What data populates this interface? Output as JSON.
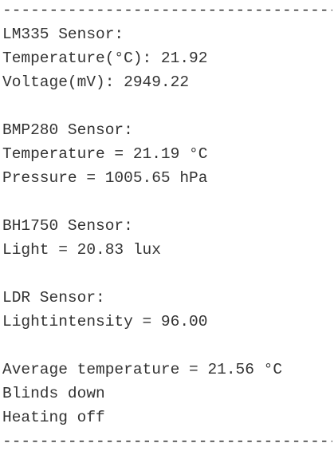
{
  "separator_top": "----------------------------------------",
  "lm335": {
    "heading": "LM335 Sensor:",
    "temperature": "Temperature(°C): 21.92",
    "voltage": "Voltage(mV): 2949.22"
  },
  "bmp280": {
    "heading": "BMP280 Sensor:",
    "temperature": "Temperature = 21.19 °C",
    "pressure": "Pressure = 1005.65 hPa"
  },
  "bh1750": {
    "heading": "BH1750 Sensor:",
    "light": "Light = 20.83 lux"
  },
  "ldr": {
    "heading": "LDR Sensor:",
    "intensity": "Lightintensity = 96.00"
  },
  "summary": {
    "average_temperature": "Average temperature = 21.56 °C",
    "blinds": "Blinds down",
    "heating": "Heating off"
  },
  "separator_bottom": "----------------------------------------"
}
